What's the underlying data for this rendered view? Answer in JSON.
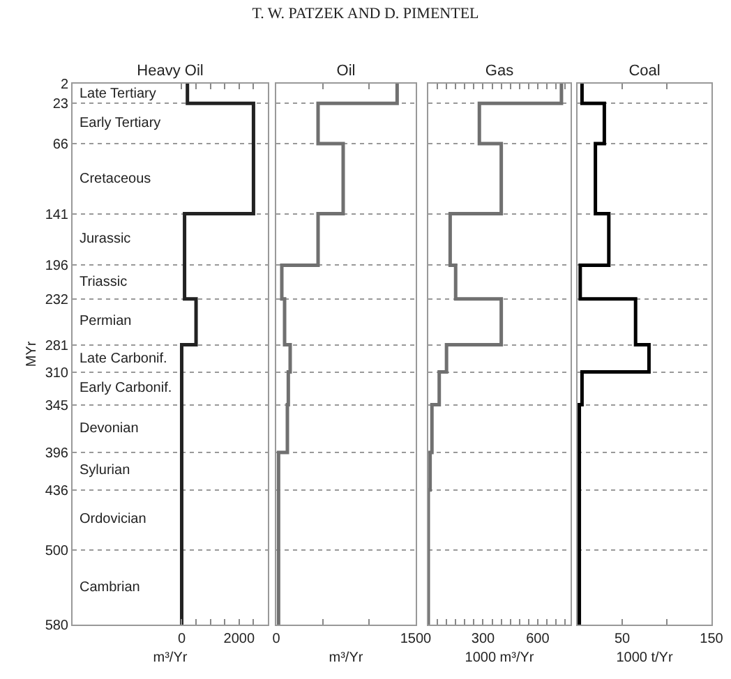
{
  "chart_data": [
    {
      "type": "step",
      "orientation": "horizontal",
      "title": "Heavy Oil",
      "xlabel": "m³/Yr",
      "ylabel": "MYr",
      "color": "#222222",
      "x": [
        2,
        23,
        66,
        141,
        196,
        232,
        281,
        310,
        345,
        396,
        436,
        500,
        580
      ],
      "values": [
        200,
        2500,
        2500,
        100,
        100,
        500,
        0,
        0,
        0,
        0,
        0,
        0,
        0
      ],
      "xlim": [
        -3800,
        3000
      ],
      "xticks": [
        0,
        {
          "value": 500,
          "label": null
        },
        {
          "value": 1000,
          "label": null
        },
        {
          "value": 1500,
          "label": null
        },
        2000,
        {
          "value": 2500,
          "label": null
        }
      ],
      "ylim": [
        580,
        2
      ],
      "yticks": [
        2,
        23,
        66,
        141,
        196,
        232,
        281,
        310,
        345,
        396,
        436,
        500,
        580
      ],
      "grid": "y",
      "annotations": [
        "T. W. PATZEK AND D. PIMENTEL",
        "Late Tertiary",
        "Early Tertiary",
        "Cretaceous",
        "Jurassic",
        "Triassic",
        "Permian",
        "Late Carbonif.",
        "Early Carbonif.",
        "Devonian",
        "Sylurian",
        "Ordovician",
        "Cambrian"
      ]
    },
    {
      "type": "step",
      "orientation": "horizontal",
      "title": "Oil",
      "xlabel": "m³/Yr",
      "color": "#707070",
      "x": [
        2,
        23,
        66,
        141,
        196,
        232,
        281,
        310,
        345,
        396,
        436,
        500,
        580
      ],
      "values": [
        1300,
        450,
        720,
        450,
        60,
        90,
        150,
        130,
        120,
        25,
        25,
        25,
        25
      ],
      "xlim": [
        0,
        1500
      ],
      "xticks": [
        0,
        {
          "value": 500,
          "label": null
        },
        {
          "value": 1000,
          "label": null
        },
        1500
      ],
      "ylim": [
        580,
        2
      ],
      "yticks": [
        2,
        23,
        66,
        141,
        196,
        232,
        281,
        310,
        345,
        396,
        436,
        500,
        580
      ],
      "grid": "y",
      "tick_labels": "x"
    },
    {
      "type": "step",
      "orientation": "horizontal",
      "title": "Gas",
      "xlabel": "1000 m³/Yr",
      "color": "#707070",
      "x": [
        2,
        23,
        66,
        141,
        196,
        232,
        281,
        310,
        345,
        396,
        436,
        500,
        580
      ],
      "values": [
        730,
        280,
        400,
        120,
        150,
        400,
        100,
        60,
        20,
        10,
        0,
        0,
        0
      ],
      "xlim": [
        0,
        780
      ],
      "xticks": [
        {
          "value": 50,
          "label": null
        },
        {
          "value": 100,
          "label": null
        },
        {
          "value": 150,
          "label": null
        },
        {
          "value": 200,
          "label": null
        },
        {
          "value": 250,
          "label": null
        },
        300,
        {
          "value": 350,
          "label": null
        },
        {
          "value": 400,
          "label": null
        },
        {
          "value": 450,
          "label": null
        },
        {
          "value": 500,
          "label": null
        },
        {
          "value": 550,
          "label": null
        },
        600,
        {
          "value": 650,
          "label": null
        },
        {
          "value": 700,
          "label": null
        },
        {
          "value": 750,
          "label": null
        }
      ],
      "ylim": [
        580,
        2
      ],
      "yticks": [
        2,
        23,
        66,
        141,
        196,
        232,
        281,
        310,
        345,
        396,
        436,
        500,
        580
      ],
      "grid": "y",
      "tick_labels": "x"
    },
    {
      "type": "step",
      "orientation": "horizontal",
      "title": "Coal",
      "xlabel": "1000 t/Yr",
      "color": "#000000",
      "x": [
        2,
        23,
        66,
        141,
        196,
        232,
        281,
        310,
        345,
        396,
        436,
        500,
        580
      ],
      "values": [
        5,
        30,
        20,
        35,
        3,
        65,
        80,
        5,
        2,
        2,
        2,
        2,
        2
      ],
      "xlim": [
        0,
        150
      ],
      "xticks": [
        50,
        {
          "value": 100,
          "label": null
        },
        150
      ],
      "ylim": [
        580,
        2
      ],
      "yticks": [
        2,
        23,
        66,
        141,
        196,
        232,
        281,
        310,
        345,
        396,
        436,
        500,
        580
      ],
      "grid": "y",
      "tick_labels": "x"
    }
  ]
}
